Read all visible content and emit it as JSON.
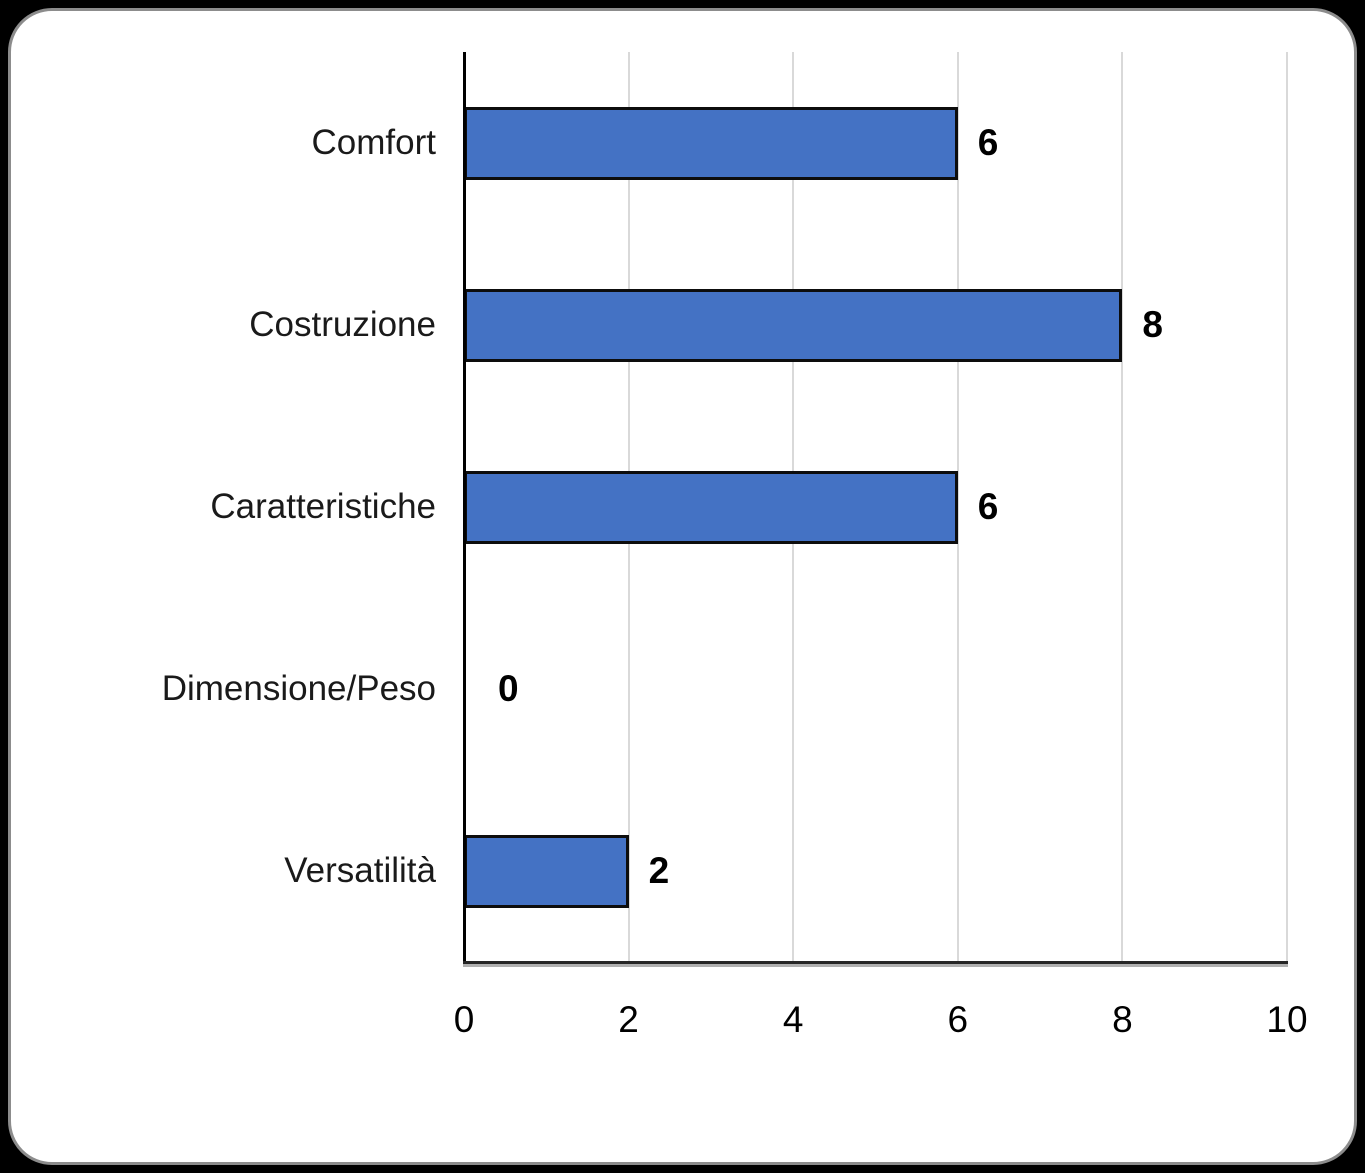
{
  "chart_data": {
    "type": "bar",
    "orientation": "horizontal",
    "title": "",
    "xlabel": "",
    "ylabel": "",
    "categories": [
      "Comfort",
      "Costruzione",
      "Caratteristiche",
      "Dimensione/Peso",
      "Versatilità"
    ],
    "values": [
      6,
      8,
      6,
      0,
      2
    ],
    "data_labels": [
      "6",
      "8",
      "6",
      "0",
      "2"
    ],
    "xlim": [
      0,
      10
    ],
    "x_ticks": [
      "0",
      "2",
      "4",
      "6",
      "8",
      "10"
    ],
    "grid": "vertical",
    "legend": "none",
    "colors": {
      "bar_fill": "#4472C4",
      "bar_border": "#0D0D0D",
      "gridline": "#D9D9D9",
      "axis_line": "#000000",
      "label_text": "#1A1A1A",
      "value_text": "#000000",
      "card_background": "#FFFFFF",
      "card_border": "#8C8C8C",
      "page_background": "#000000"
    }
  }
}
